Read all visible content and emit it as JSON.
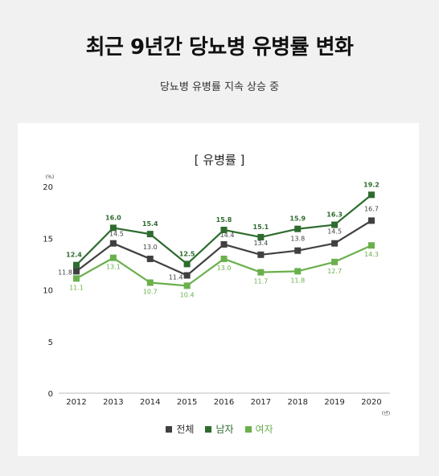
{
  "page": {
    "title": "최근 9년간 당뇨병 유병률 변화",
    "subtitle": "당뇨병 유병률 지속 상승 중"
  },
  "chart_data": {
    "type": "line",
    "title": "[ 유병률 ]",
    "ylabel": "(%)",
    "xlabel": "(년)",
    "ylim": [
      0,
      20
    ],
    "yticks": [
      0,
      5,
      10,
      15,
      20
    ],
    "categories": [
      "2012",
      "2013",
      "2014",
      "2015",
      "2016",
      "2017",
      "2018",
      "2019",
      "2020"
    ],
    "legend_position": "bottom",
    "grid": false,
    "series": [
      {
        "name": "전체",
        "color": "#404040",
        "values": [
          11.8,
          14.5,
          13.0,
          11.4,
          14.4,
          13.4,
          13.8,
          14.5,
          16.7
        ],
        "labels": [
          "11.8",
          "14.5",
          "13.0",
          "11.4",
          "14.4",
          "13.4",
          "13.8",
          "14.5",
          "16.7"
        ]
      },
      {
        "name": "남자",
        "color": "#2e6b2e",
        "values": [
          12.4,
          16.0,
          15.4,
          12.5,
          15.8,
          15.1,
          15.9,
          16.3,
          19.2
        ],
        "labels": [
          "12.4",
          "16.0",
          "15.4",
          "12.5",
          "15.8",
          "15.1",
          "15.9",
          "16.3",
          "19.2"
        ]
      },
      {
        "name": "여자",
        "color": "#6ab04c",
        "values": [
          11.1,
          13.1,
          10.7,
          10.4,
          13.0,
          11.7,
          11.8,
          12.7,
          14.3
        ],
        "labels": [
          "11.1",
          "13.1",
          "10.7",
          "10.4",
          "13.0",
          "11.7",
          "11.8",
          "12.7",
          "14.3"
        ]
      }
    ]
  }
}
